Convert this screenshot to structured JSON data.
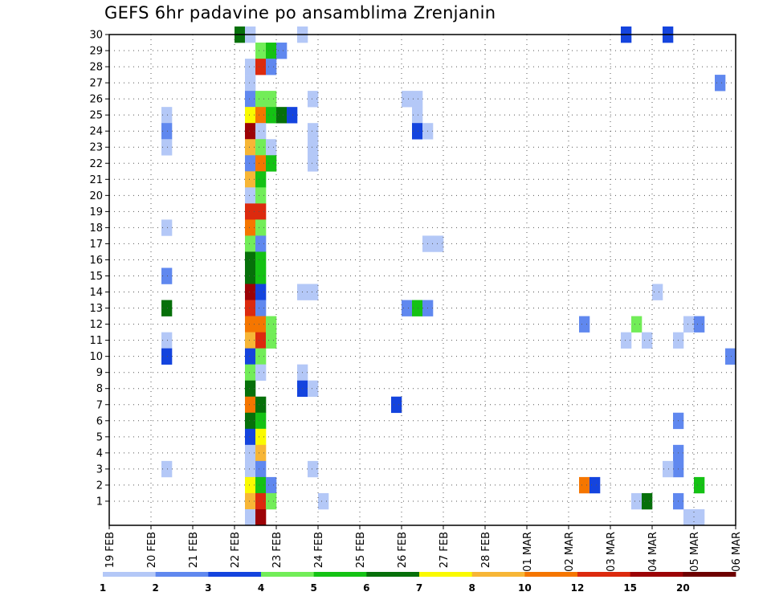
{
  "title": "GEFS 6hr padavine po ansamblima Zrenjanin",
  "chart_data": {
    "type": "heatmap",
    "title": "GEFS 6hr padavine po ansamblima Zrenjanin",
    "y_range": [
      0,
      30
    ],
    "y_ticks": [
      "1",
      "2",
      "3",
      "4",
      "5",
      "6",
      "7",
      "8",
      "9",
      "10",
      "11",
      "12",
      "13",
      "14",
      "15",
      "16",
      "17",
      "18",
      "19",
      "20",
      "21",
      "22",
      "23",
      "24",
      "25",
      "26",
      "27",
      "28",
      "29",
      "30"
    ],
    "x_tick_labels": [
      "19 FEB",
      "20 FEB",
      "21 FEB",
      "22 FEB",
      "23 FEB",
      "24 FEB",
      "25 FEB",
      "26 FEB",
      "27 FEB",
      "28 FEB",
      "01 MAR",
      "02 MAR",
      "03 MAR",
      "04 MAR",
      "05 MAR",
      "06 MAR"
    ],
    "x_range_days": [
      0,
      15
    ],
    "grid": true,
    "legend": {
      "position": "bottom",
      "colors": [
        "#b4c8f7",
        "#6088ef",
        "#1444de",
        "#72ed58",
        "#14c214",
        "#06700a",
        "#fafa00",
        "#f7b636",
        "#f57600",
        "#dc2a0e",
        "#9c0206",
        "#6e0000"
      ],
      "labels": [
        "1",
        "2",
        "3",
        "4",
        "5",
        "6",
        "7",
        "8",
        "10",
        "12",
        "15",
        "20"
      ]
    },
    "cells": [
      [
        3.0,
        30,
        5
      ],
      [
        3.25,
        30,
        0
      ],
      [
        3.5,
        29,
        3
      ],
      [
        3.75,
        29,
        4
      ],
      [
        4.0,
        29,
        1
      ],
      [
        3.25,
        28,
        0
      ],
      [
        3.5,
        28,
        9
      ],
      [
        3.75,
        28,
        1
      ],
      [
        3.25,
        27,
        0
      ],
      [
        3.25,
        26,
        1
      ],
      [
        3.5,
        26,
        3
      ],
      [
        3.75,
        26,
        3
      ],
      [
        3.25,
        25,
        6
      ],
      [
        3.5,
        25,
        8
      ],
      [
        3.75,
        25,
        4
      ],
      [
        4.0,
        25,
        5
      ],
      [
        4.25,
        25,
        2
      ],
      [
        3.25,
        24,
        10
      ],
      [
        3.5,
        24,
        0
      ],
      [
        3.25,
        23,
        7
      ],
      [
        3.5,
        23,
        3
      ],
      [
        3.75,
        23,
        0
      ],
      [
        3.25,
        22,
        1
      ],
      [
        3.5,
        22,
        8
      ],
      [
        3.75,
        22,
        4
      ],
      [
        3.25,
        21,
        7
      ],
      [
        3.5,
        21,
        4
      ],
      [
        3.25,
        20,
        0
      ],
      [
        3.5,
        20,
        3
      ],
      [
        3.25,
        19,
        9
      ],
      [
        3.5,
        19,
        9
      ],
      [
        3.25,
        18,
        8
      ],
      [
        3.5,
        18,
        3
      ],
      [
        3.25,
        17,
        3
      ],
      [
        3.5,
        17,
        1
      ],
      [
        3.25,
        16,
        5
      ],
      [
        3.5,
        16,
        4
      ],
      [
        3.25,
        15,
        5
      ],
      [
        3.5,
        15,
        4
      ],
      [
        3.25,
        14,
        10
      ],
      [
        3.5,
        14,
        2
      ],
      [
        3.25,
        13,
        9
      ],
      [
        3.5,
        13,
        1
      ],
      [
        3.25,
        12,
        8
      ],
      [
        3.5,
        12,
        8
      ],
      [
        3.75,
        12,
        3
      ],
      [
        3.25,
        11,
        7
      ],
      [
        3.5,
        11,
        9
      ],
      [
        3.75,
        11,
        3
      ],
      [
        3.25,
        10,
        2
      ],
      [
        3.5,
        10,
        3
      ],
      [
        3.25,
        9,
        3
      ],
      [
        3.5,
        9,
        0
      ],
      [
        3.25,
        8,
        5
      ],
      [
        3.25,
        7,
        8
      ],
      [
        3.5,
        7,
        5
      ],
      [
        3.25,
        6,
        5
      ],
      [
        3.5,
        6,
        4
      ],
      [
        3.25,
        5,
        2
      ],
      [
        3.5,
        5,
        6
      ],
      [
        3.25,
        4,
        0
      ],
      [
        3.5,
        4,
        7
      ],
      [
        3.25,
        3,
        0
      ],
      [
        3.5,
        3,
        1
      ],
      [
        3.25,
        2,
        6
      ],
      [
        3.5,
        2,
        4
      ],
      [
        3.75,
        2,
        1
      ],
      [
        3.25,
        1,
        7
      ],
      [
        3.5,
        1,
        9
      ],
      [
        3.75,
        1,
        3
      ],
      [
        3.25,
        0,
        0
      ],
      [
        3.5,
        0,
        10
      ],
      [
        1.25,
        25,
        0
      ],
      [
        1.25,
        24,
        1
      ],
      [
        1.25,
        23,
        0
      ],
      [
        1.25,
        18,
        0
      ],
      [
        1.25,
        15,
        1
      ],
      [
        1.25,
        13,
        5
      ],
      [
        1.25,
        11,
        0
      ],
      [
        1.25,
        10,
        2
      ],
      [
        1.25,
        3,
        0
      ],
      [
        4.5,
        30,
        0
      ],
      [
        4.75,
        26,
        0
      ],
      [
        4.75,
        24,
        0
      ],
      [
        4.75,
        23,
        0
      ],
      [
        4.75,
        22,
        0
      ],
      [
        4.5,
        14,
        0
      ],
      [
        4.75,
        14,
        0
      ],
      [
        4.5,
        9,
        0
      ],
      [
        4.5,
        8,
        2
      ],
      [
        4.75,
        8,
        0
      ],
      [
        4.75,
        3,
        0
      ],
      [
        5.0,
        1,
        0
      ],
      [
        7.0,
        26,
        0
      ],
      [
        7.25,
        26,
        0
      ],
      [
        7.25,
        25,
        0
      ],
      [
        7.25,
        24,
        2
      ],
      [
        7.5,
        24,
        0
      ],
      [
        7.5,
        17,
        0
      ],
      [
        7.75,
        17,
        0
      ],
      [
        7.0,
        13,
        1
      ],
      [
        7.25,
        13,
        4
      ],
      [
        7.5,
        13,
        1
      ],
      [
        6.75,
        7,
        2
      ],
      [
        11.25,
        12,
        1
      ],
      [
        11.25,
        2,
        8
      ],
      [
        11.5,
        2,
        2
      ],
      [
        12.25,
        30,
        2
      ],
      [
        13.25,
        30,
        2
      ],
      [
        13.0,
        14,
        0
      ],
      [
        12.5,
        12,
        3
      ],
      [
        12.25,
        11,
        0
      ],
      [
        12.75,
        11,
        0
      ],
      [
        13.5,
        11,
        0
      ],
      [
        13.75,
        12,
        0
      ],
      [
        14.0,
        12,
        1
      ],
      [
        13.5,
        6,
        1
      ],
      [
        13.5,
        4,
        1
      ],
      [
        13.5,
        3,
        1
      ],
      [
        13.25,
        3,
        0
      ],
      [
        14.0,
        2,
        4
      ],
      [
        12.5,
        1,
        0
      ],
      [
        12.75,
        1,
        5
      ],
      [
        13.5,
        1,
        1
      ],
      [
        13.75,
        0,
        0
      ],
      [
        14.0,
        0,
        0
      ],
      [
        14.5,
        27,
        1
      ],
      [
        14.75,
        10,
        1
      ]
    ]
  }
}
